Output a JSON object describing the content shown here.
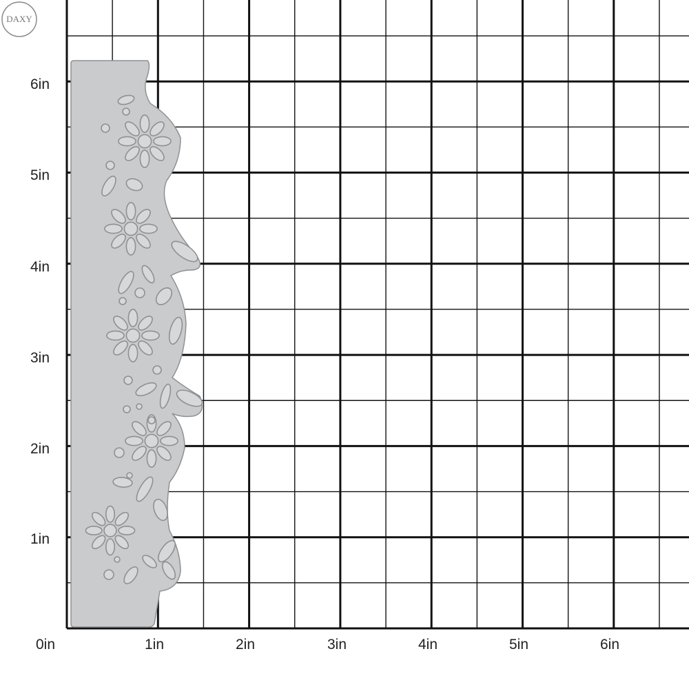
{
  "photo": {
    "subject": "metal-cutting-die-floral-border-on-grid-mat",
    "mat_color": "#ffffff",
    "grid_line_color": "#111111",
    "die_color": "#c9cbcd",
    "die_edge_color": "#8e9194"
  },
  "grid": {
    "y_axis_labels": [
      "6in",
      "5in",
      "4in",
      "3in",
      "2in",
      "1in",
      "0in"
    ],
    "x_axis_labels": [
      "1in",
      "2in",
      "3in",
      "4in",
      "5in",
      "6in"
    ],
    "units": "in",
    "major_step_in": 1,
    "minor_step_in": 0.5
  },
  "die": {
    "width_in": 1.5,
    "height_in": 6.2,
    "motif": "daisy-flowers-and-leaves-border"
  },
  "watermark": {
    "text": "DAXY"
  }
}
